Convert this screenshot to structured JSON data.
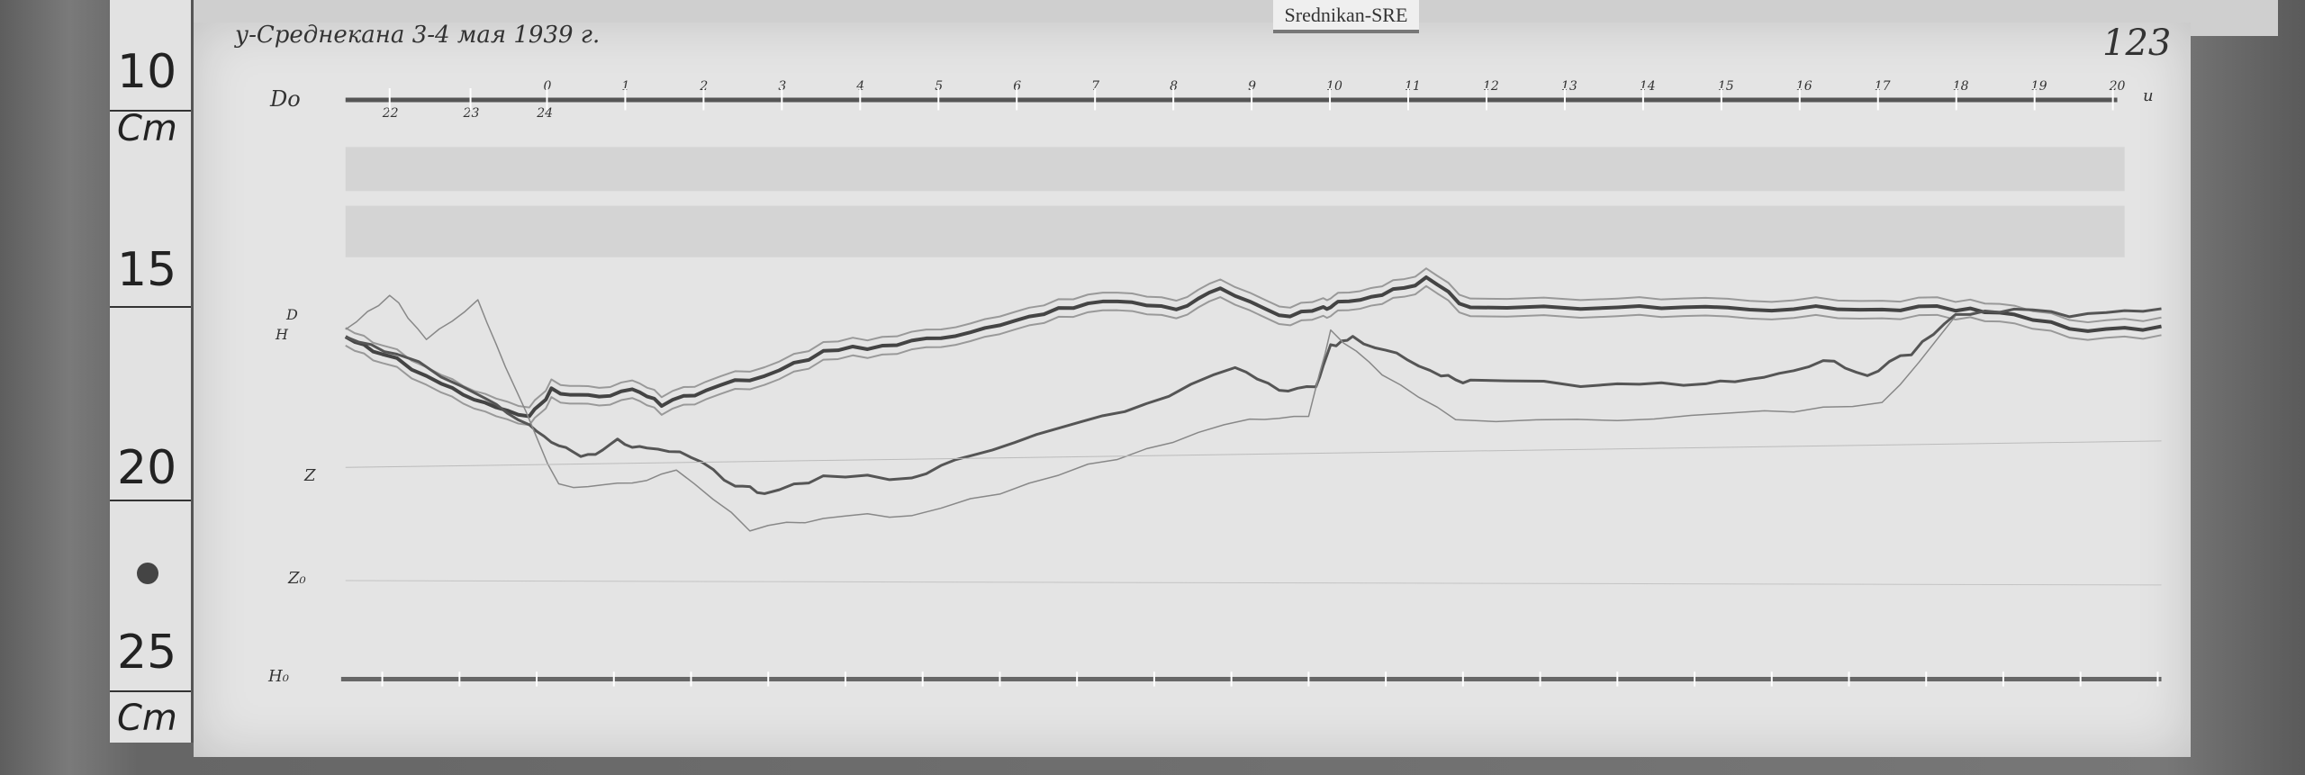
{
  "ruler": {
    "marks": [
      "10",
      "Cm",
      "15",
      "20",
      "25",
      "Cm"
    ]
  },
  "tag": "Srednikan-SRE",
  "title": "у-Среднекана 3-4 мая 1939 г.",
  "sheet_number": "123",
  "time_axis": {
    "baseline_label": "Do",
    "upper_hours": [
      "0",
      "1",
      "2",
      "3",
      "4",
      "5",
      "6",
      "7",
      "8",
      "9",
      "10",
      "11",
      "12",
      "13",
      "14",
      "15",
      "16",
      "17",
      "18",
      "19",
      "20"
    ],
    "lower_hours": [
      "22",
      "23",
      "24"
    ],
    "end_label": "u"
  },
  "trace_labels": {
    "d": "D",
    "h": "H",
    "z": "Z",
    "z0": "Z₀",
    "h0": "H₀"
  }
}
